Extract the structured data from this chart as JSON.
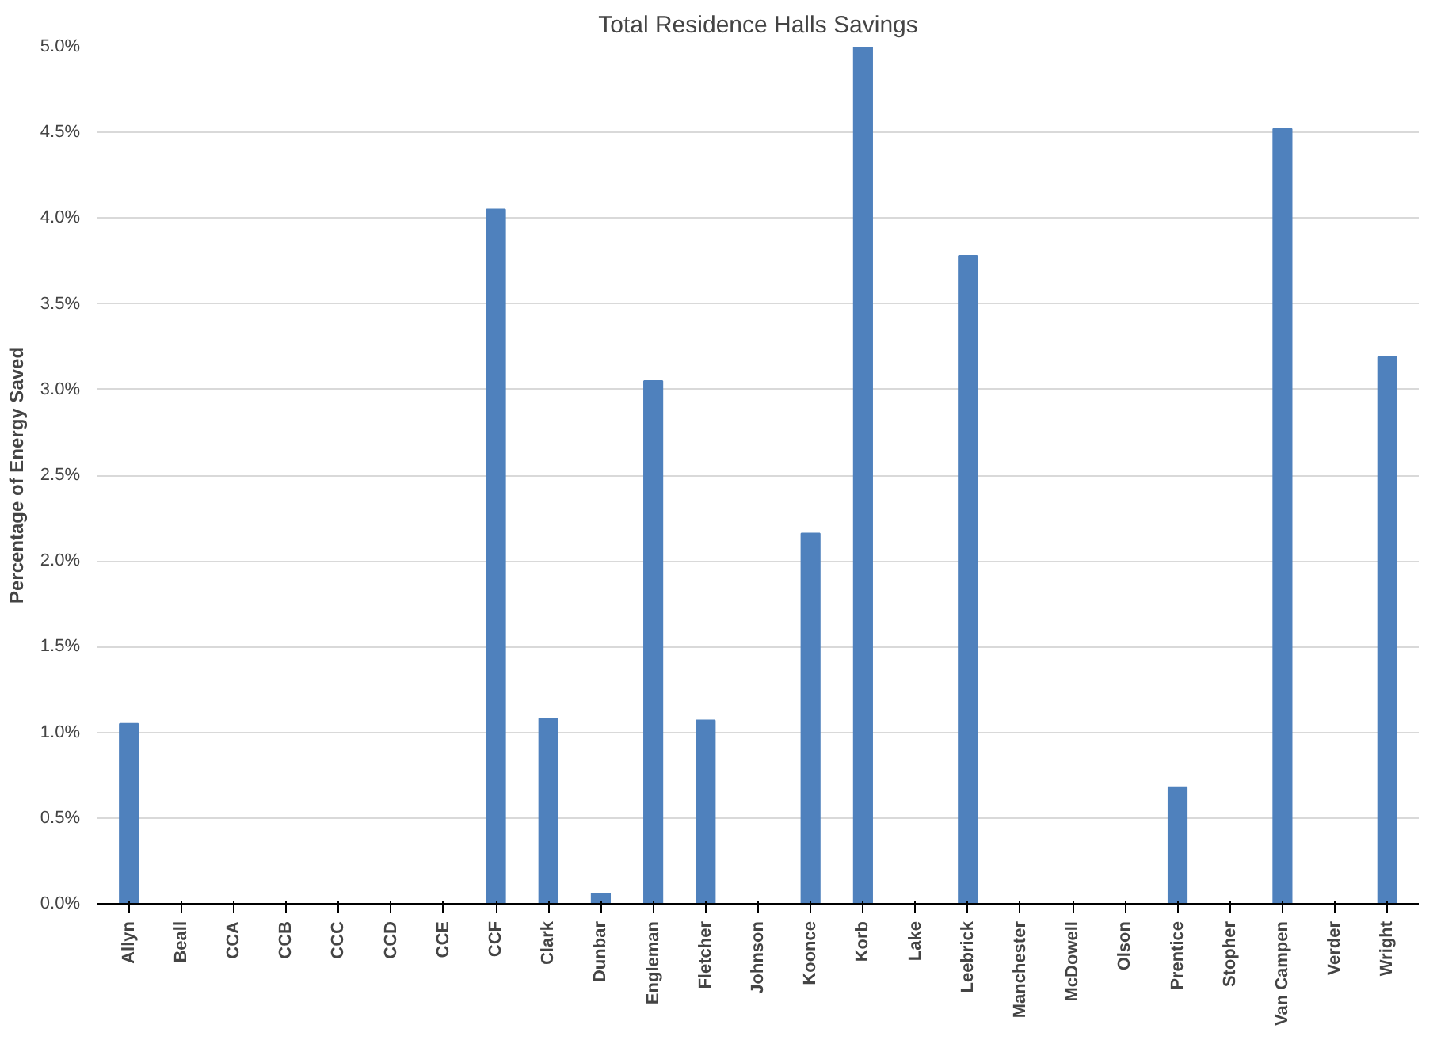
{
  "chart_data": {
    "type": "bar",
    "title": "Total Residence Halls Savings",
    "ylabel": "Percentage of Energy Saved",
    "categories": [
      "Allyn",
      "Beall",
      "CCA",
      "CCB",
      "CCC",
      "CCD",
      "CCE",
      "CCF",
      "Clark",
      "Dunbar",
      "Engleman",
      "Fletcher",
      "Johnson",
      "Koonce",
      "Korb",
      "Lake",
      "Leebrick",
      "Manchester",
      "McDowell",
      "Olson",
      "Prentice",
      "Stopher",
      "Van Campen",
      "Verder",
      "Wright"
    ],
    "values": [
      1.05,
      0,
      0,
      0,
      0,
      0,
      0,
      4.05,
      1.08,
      0.06,
      3.05,
      1.07,
      0,
      2.16,
      5.0,
      0,
      3.78,
      0,
      0,
      0,
      0.68,
      0,
      4.52,
      0,
      3.19
    ],
    "color": "#4f81bd",
    "ylim": [
      0,
      5.0
    ],
    "yticks": [
      {
        "value": 0,
        "label": "0.0%"
      },
      {
        "value": 0.5,
        "label": "0.5%"
      },
      {
        "value": 1.0,
        "label": "1.0%"
      },
      {
        "value": 1.5,
        "label": "1.5%"
      },
      {
        "value": 2.0,
        "label": "2.0%"
      },
      {
        "value": 2.5,
        "label": "2.5%"
      },
      {
        "value": 3.0,
        "label": "3.0%"
      },
      {
        "value": 3.5,
        "label": "3.5%"
      },
      {
        "value": 4.0,
        "label": "4.0%"
      },
      {
        "value": 4.5,
        "label": "4.5%"
      },
      {
        "value": 5.0,
        "label": "5.0%"
      }
    ],
    "grid": "y"
  }
}
